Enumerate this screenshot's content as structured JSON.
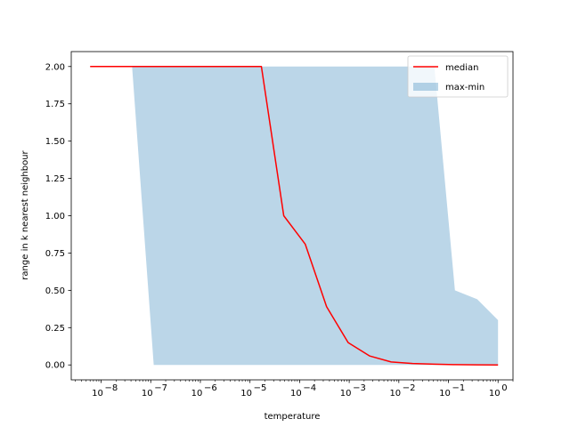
{
  "chart_data": {
    "type": "line",
    "xlabel": "temperature",
    "ylabel": "range in k nearest neighbour",
    "xscale": "log",
    "xlim": [
      2.5e-09,
      2.0
    ],
    "ylim": [
      -0.1,
      2.1
    ],
    "y_ticks": [
      0.0,
      0.25,
      0.5,
      0.75,
      1.0,
      1.25,
      1.5,
      1.75,
      2.0
    ],
    "y_tick_labels": [
      "0.00",
      "0.25",
      "0.50",
      "0.75",
      "1.00",
      "1.25",
      "1.50",
      "1.75",
      "2.00"
    ],
    "x_ticks": [
      1e-08,
      1e-07,
      1e-06,
      1e-05,
      0.0001,
      0.001,
      0.01,
      0.1,
      1
    ],
    "x_tick_labels": [
      {
        "base": "10",
        "exp": "−8"
      },
      {
        "base": "10",
        "exp": "−7"
      },
      {
        "base": "10",
        "exp": "−6"
      },
      {
        "base": "10",
        "exp": "−5"
      },
      {
        "base": "10",
        "exp": "−4"
      },
      {
        "base": "10",
        "exp": "−3"
      },
      {
        "base": "10",
        "exp": "−2"
      },
      {
        "base": "10",
        "exp": "−1"
      },
      {
        "base": "10",
        "exp": "0"
      }
    ],
    "legend": {
      "position": "top-right",
      "entries": [
        {
          "label": "median",
          "type": "line",
          "color": "#ff0000"
        },
        {
          "label": "max-min",
          "type": "patch",
          "color": "#1f77b4",
          "alpha": 0.3
        }
      ]
    },
    "series": [
      {
        "name": "median",
        "color": "#ff0000",
        "x": [
          6e-09,
          1.7e-05,
          4.8e-05,
          0.00013,
          0.00035,
          0.00095,
          0.0026,
          0.007,
          0.019,
          0.052,
          0.14,
          0.38,
          1.0
        ],
        "y": [
          2.0,
          2.0,
          1.0,
          0.81,
          0.39,
          0.15,
          0.06,
          0.02,
          0.01,
          0.005,
          0.002,
          0.001,
          0.0
        ]
      }
    ],
    "band": {
      "name": "max-min",
      "color": "#1f77b4",
      "alpha": 0.3,
      "x": [
        4.2e-08,
        1.15e-07,
        0.052,
        0.135,
        0.38,
        1.0
      ],
      "y_max": [
        2.0,
        2.0,
        2.0,
        0.5,
        0.44,
        0.3
      ],
      "y_min": [
        2.0,
        0.0,
        0.0,
        0.0,
        0.0,
        0.0
      ]
    },
    "grid": false
  }
}
